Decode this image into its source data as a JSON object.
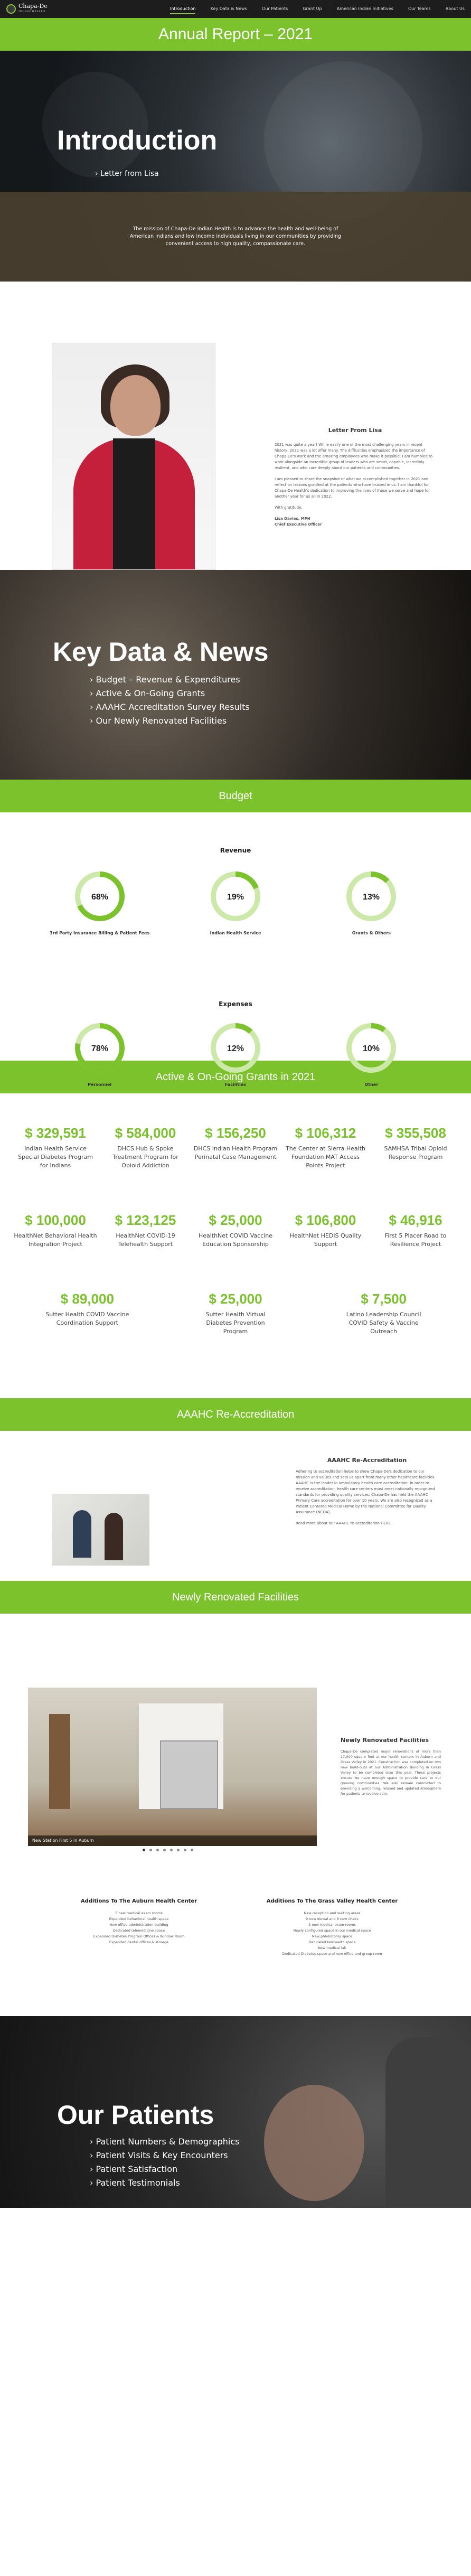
{
  "nav": {
    "logo_name": "Chapa-De",
    "logo_tagline": "INDIAN HEALTH",
    "items": [
      {
        "label": "Introduction",
        "active": true
      },
      {
        "label": "Key Data & News",
        "active": false
      },
      {
        "label": "Our Patients",
        "active": false
      },
      {
        "label": "Grant Up",
        "active": false
      },
      {
        "label": "American Indian Initiatives",
        "active": false
      },
      {
        "label": "Our Teams",
        "active": false
      },
      {
        "label": "About Us",
        "active": false
      }
    ]
  },
  "page_title": "Annual Report – 2021",
  "hero": {
    "title": "Introduction",
    "subtitle": "› Letter from Lisa",
    "mission": "The mission of Chapa-De Indian Health is to advance the health and well-being of American Indians and low income individuals living in our communities by providing convenient access to high quality, compassionate care."
  },
  "letter": {
    "heading": "Letter From Lisa",
    "paragraphs": [
      "2021 was quite a year! While easily one of the most challenging years in recent history, 2021 was a lot offer many. The difficulties emphasized the importance of Chapa-De's work and the amazing employees who make it possible. I am humbled to work alongside an incredible group of leaders who are smart, capable, incredibly resilient, and who care deeply about our patients and communities.",
      "I am pleased to share the snapshot of what we accomplished together in 2021 and reflect on lessons gratified at the patients who have trusted in us. I am thankful for Chapa-De Health's dedication to improving the lives of those we serve and hope for another year for us all in 2022.",
      "With gratitude,",
      "Lisa Davies, MPH\nChief Executive Officer"
    ]
  },
  "key_data": {
    "title": "Key Data & News",
    "items": [
      "› Budget – Revenue & Expenditures",
      "› Active & On-Going Grants",
      "› AAAHC Accreditation Survey Results",
      "› Our Newly Renovated Facilities"
    ]
  },
  "budget": {
    "band": "Budget",
    "revenue_heading": "Revenue",
    "expenses_heading": "Expenses",
    "accent_color": "#7cc22d",
    "track_color": "#cde9a9"
  },
  "chart_data": [
    {
      "type": "pie",
      "title": "Revenue",
      "categories": [
        "3rd Party Insurance Billing & Patient Fees",
        "Indian Health Service",
        "Grants & Others"
      ],
      "values": [
        68,
        19,
        13
      ],
      "value_labels": [
        "68%",
        "19%",
        "13%"
      ]
    },
    {
      "type": "pie",
      "title": "Expenses",
      "categories": [
        "Personnel",
        "Facilities",
        "Other"
      ],
      "values": [
        78,
        12,
        10
      ],
      "value_labels": [
        "78%",
        "12%",
        "10%"
      ]
    }
  ],
  "grants": {
    "band": "Active & On-Going Grants in 2021",
    "rows": [
      [
        {
          "amount": "$ 329,591",
          "desc": "Indian Health Service Special Diabetes Program for Indians"
        },
        {
          "amount": "$ 584,000",
          "desc": "DHCS Hub & Spoke Treatment Program for Opioid Addiction"
        },
        {
          "amount": "$ 156,250",
          "desc": "DHCS Indian Health Program Perinatal Case Management"
        },
        {
          "amount": "$ 106,312",
          "desc": "The Center at Sierra Health Foundation MAT Access Points Project"
        },
        {
          "amount": "$ 355,508",
          "desc": "SAMHSA Tribal Opioid Response Program"
        }
      ],
      [
        {
          "amount": "$ 100,000",
          "desc": "HealthNet Behavioral Health Integration Project"
        },
        {
          "amount": "$ 123,125",
          "desc": "HealthNet COVID-19 Telehealth Support"
        },
        {
          "amount": "$ 25,000",
          "desc": "HealthNet COVID Vaccine Education Sponsorship"
        },
        {
          "amount": "$ 106,800",
          "desc": "HealthNet HEDIS Quality Support"
        },
        {
          "amount": "$ 46,916",
          "desc": "First 5 Placer Road to Resilience Project"
        }
      ],
      [
        {
          "amount": "$ 89,000",
          "desc": "Sutter Health COVID Vaccine Coordination Support"
        },
        {
          "amount": "$ 25,000",
          "desc": "Sutter Health Virtual Diabetes Prevention Program"
        },
        {
          "amount": "$ 7,500",
          "desc": "Latino Leadership Council COVID Safety & Vaccine Outreach"
        }
      ]
    ]
  },
  "aaahc": {
    "band": "AAAHC Re-Accreditation",
    "heading": "AAAHC Re-Accreditation",
    "paragraphs": [
      "Adhering to accreditation helps to show Chapa-De's dedication to our mission and values and sets us apart from many other healthcare facilities. AAAHC is the leader in ambulatory health care accreditation. In order to receive accreditation, health care centers must meet nationally recognized standards for providing quality services. Chapa-De has held the AAAHC Primary Care accreditation for over 10 years. We are also recognized as a Patient Centered Medical Home by the National Committee for Quality Assurance (NCQA).",
      "Read more about our AAAHC re-accreditation HERE"
    ]
  },
  "renovated": {
    "band": "Newly Renovated Facilities",
    "caption": "New Station First 5 in Auburn",
    "heading": "Newly Renovated Facilities",
    "paragraph": "Chapa-De completed major renovations of more than 17,000 square feet at our health centers in Auburn and Grass Valley in 2021. Construction was completed on two new build-outs at our Administration Building in Grass Valley to be completed later this year. These projects ensure we have enough space to provide care to our growing communities. We also remain committed to providing a welcoming, relaxed and updated atmosphere for patients to receive care.",
    "slide_count": 8,
    "active_slide": 1
  },
  "additions": {
    "auburn": {
      "heading": "Additions To The Auburn Health Center",
      "items": [
        "5 new medical exam rooms",
        "Expanded behavioral health space",
        "New office administration building",
        "Dedicated telemedicine space",
        "Expanded Diabetes Program Offices & Window Room",
        "Expanded dental offices & storage"
      ]
    },
    "grass_valley": {
      "heading": "Additions To The Grass Valley Health Center",
      "items": [
        "New reception and waiting areas",
        "9 new dental and 6 new chairs",
        "3 new medical exam rooms",
        "Newly configured space in our medical space",
        "New phlebotomy space",
        "Dedicated telehealth space",
        "New medical lab",
        "Dedicated Diabetes space and new office and group room"
      ]
    }
  },
  "patients": {
    "title": "Our Patients",
    "items": [
      "› Patient Numbers & Demographics",
      "› Patient Visits & Key Encounters",
      "› Patient Satisfaction",
      "› Patient Testimonials"
    ]
  }
}
